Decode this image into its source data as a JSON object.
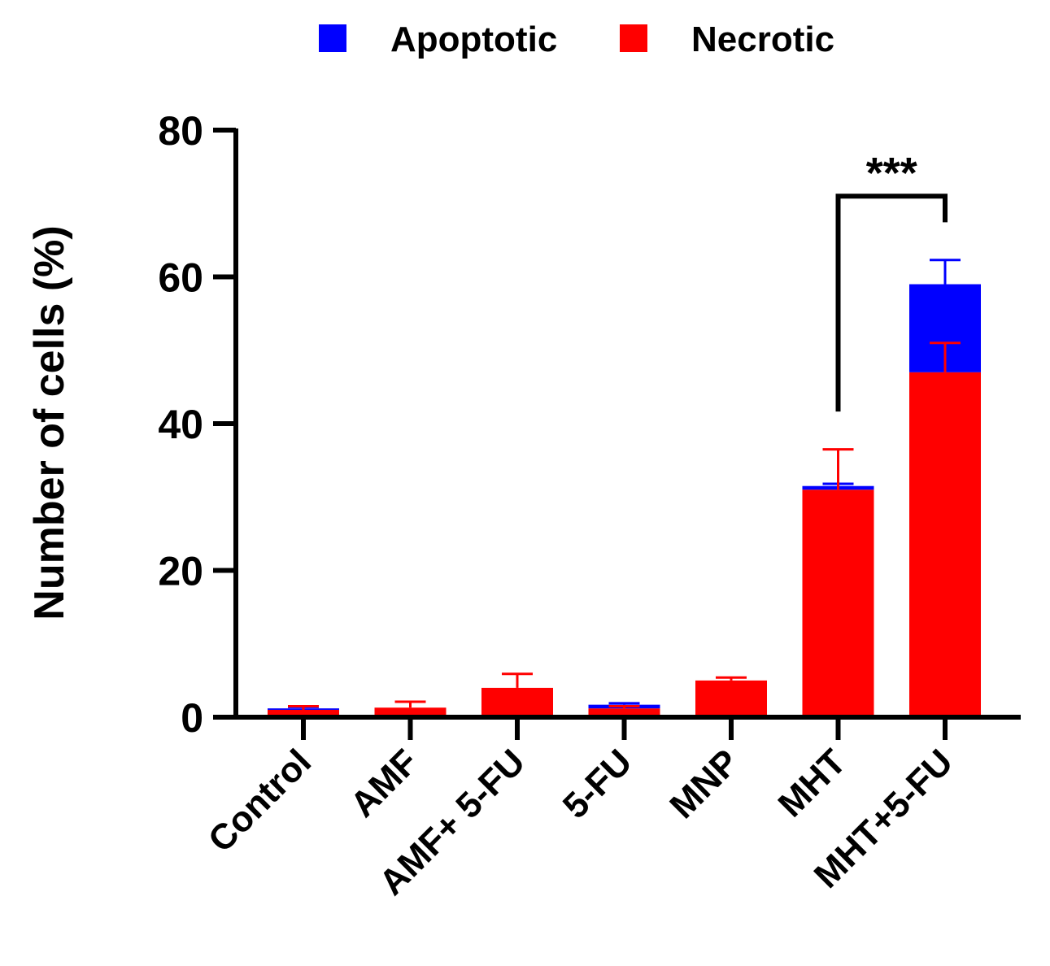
{
  "chart_data": {
    "type": "bar",
    "stacked": true,
    "categories": [
      "Control",
      "AMF",
      "AMF+ 5-FU",
      "5-FU",
      "MNP",
      "MHT",
      "MHT+5-FU"
    ],
    "series": [
      {
        "name": "Necrotic",
        "color": "#ff0000",
        "values": [
          1.0,
          1.3,
          4.0,
          1.2,
          5.0,
          31.0,
          47.0
        ],
        "error": [
          0.5,
          0.8,
          1.9,
          0.3,
          0.4,
          5.5,
          4.0
        ]
      },
      {
        "name": "Apoptotic",
        "color": "#0000ff",
        "values": [
          0.2,
          0.0,
          0.0,
          0.5,
          0.0,
          0.5,
          12.0
        ],
        "error": [
          0.2,
          0.0,
          0.0,
          0.2,
          0.0,
          0.3,
          3.3
        ]
      }
    ],
    "legend_order": [
      "Apoptotic",
      "Necrotic"
    ],
    "legend_position": "top-center",
    "ylabel": "Number of cells (%)",
    "xlabel": "",
    "ylim": [
      0,
      80
    ],
    "yticks": [
      0,
      20,
      40,
      60,
      80
    ],
    "grid": false,
    "annotations": [
      {
        "type": "significance",
        "from": "MHT",
        "to": "MHT+5-FU",
        "text": "***",
        "y": 71
      }
    ]
  }
}
